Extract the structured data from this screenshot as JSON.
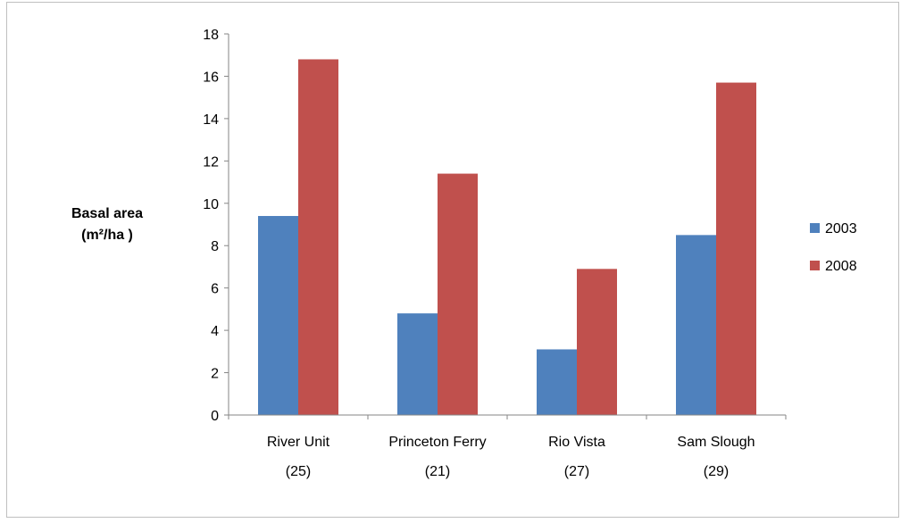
{
  "chart_data": {
    "type": "bar",
    "title": "",
    "xlabel": "",
    "ylabel": {
      "line1": "Basal area",
      "line2": "(m²/ha )"
    },
    "categories": [
      {
        "name": "River Unit",
        "n": "(25)"
      },
      {
        "name": "Princeton Ferry",
        "n": "(21)"
      },
      {
        "name": "Rio Vista",
        "n": "(27)"
      },
      {
        "name": "Sam Slough",
        "n": "(29)"
      }
    ],
    "series": [
      {
        "name": "2003",
        "color": "#4f81bd",
        "values": [
          9.4,
          4.8,
          3.1,
          8.5
        ]
      },
      {
        "name": "2008",
        "color": "#c0504d",
        "values": [
          16.8,
          11.4,
          6.9,
          15.7
        ]
      }
    ],
    "ylim": [
      0,
      18
    ],
    "yticks": [
      0,
      2,
      4,
      6,
      8,
      10,
      12,
      14,
      16,
      18
    ],
    "grid": false,
    "legend": "right"
  }
}
